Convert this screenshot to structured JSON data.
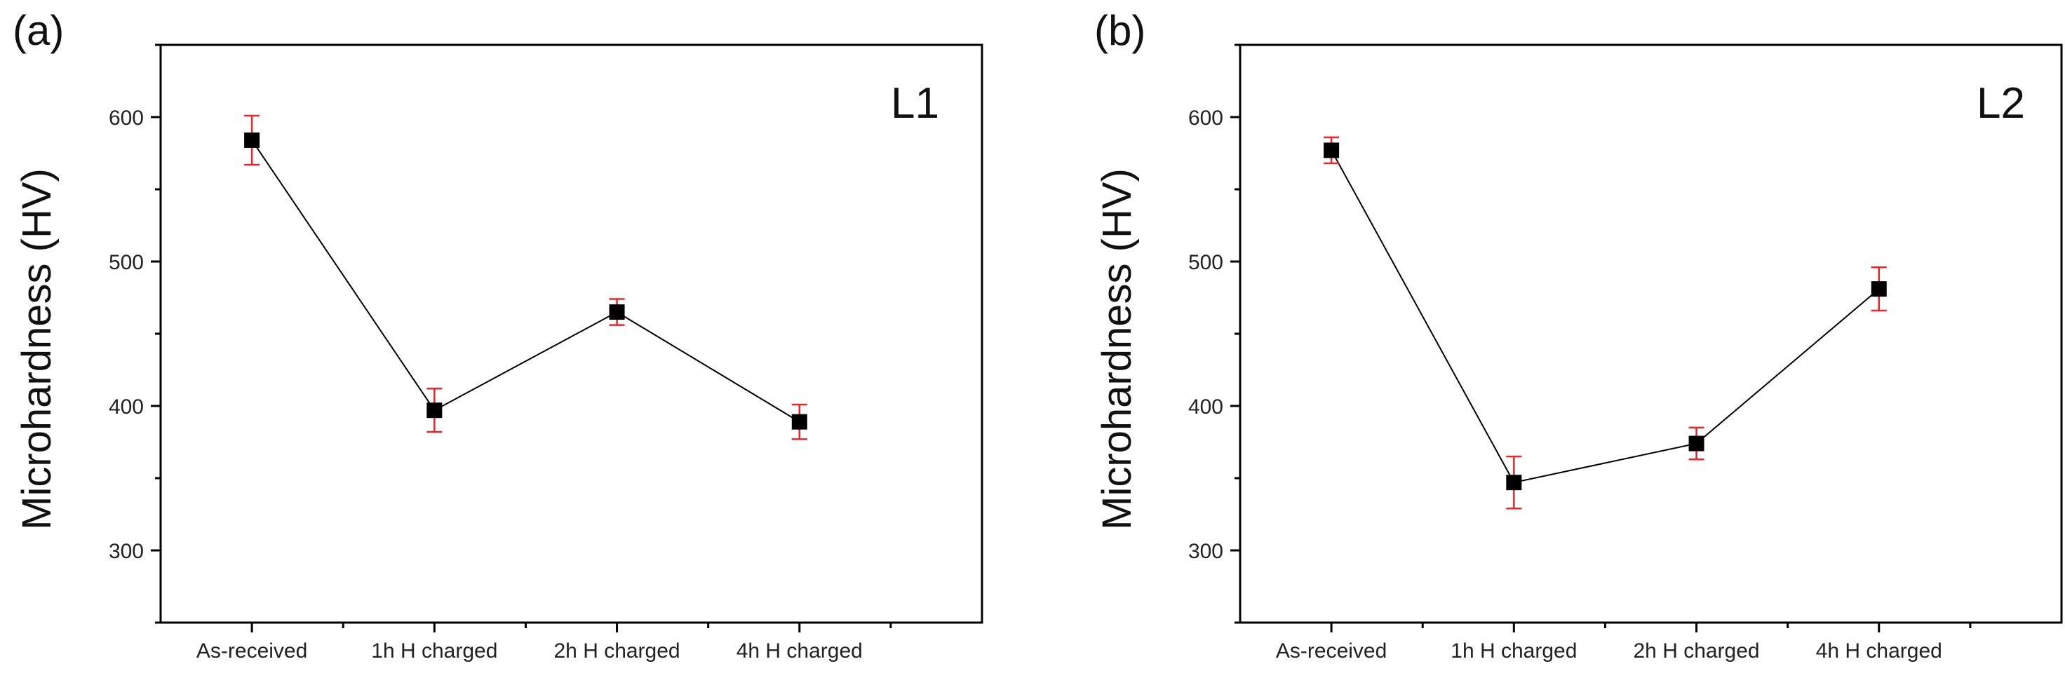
{
  "chart_data": [
    {
      "type": "line",
      "panel_label": "(a)",
      "series_label": "L1",
      "ylabel": "Microhardness (HV)",
      "xlabel": "",
      "categories": [
        "As-received",
        "1h H charged",
        "2h H charged",
        "4h H charged"
      ],
      "yticks": [
        "300",
        "400",
        "500",
        "600"
      ],
      "ylim": [
        250,
        650
      ],
      "series": [
        {
          "name": "L1",
          "values": [
            584,
            397,
            465,
            389
          ],
          "errors": [
            17,
            15,
            9,
            12
          ]
        }
      ],
      "colors": {
        "line": "#000000",
        "marker": "#000000",
        "error_bar": "#e8262a"
      }
    },
    {
      "type": "line",
      "panel_label": "(b)",
      "series_label": "L2",
      "ylabel": "Microhardness (HV)",
      "xlabel": "",
      "categories": [
        "As-received",
        "1h H charged",
        "2h H charged",
        "4h H charged"
      ],
      "yticks": [
        "300",
        "400",
        "500",
        "600"
      ],
      "ylim": [
        250,
        650
      ],
      "series": [
        {
          "name": "L2",
          "values": [
            577,
            347,
            374,
            481
          ],
          "errors": [
            9,
            18,
            11,
            15
          ]
        }
      ],
      "colors": {
        "line": "#000000",
        "marker": "#000000",
        "error_bar": "#e8262a"
      }
    }
  ]
}
